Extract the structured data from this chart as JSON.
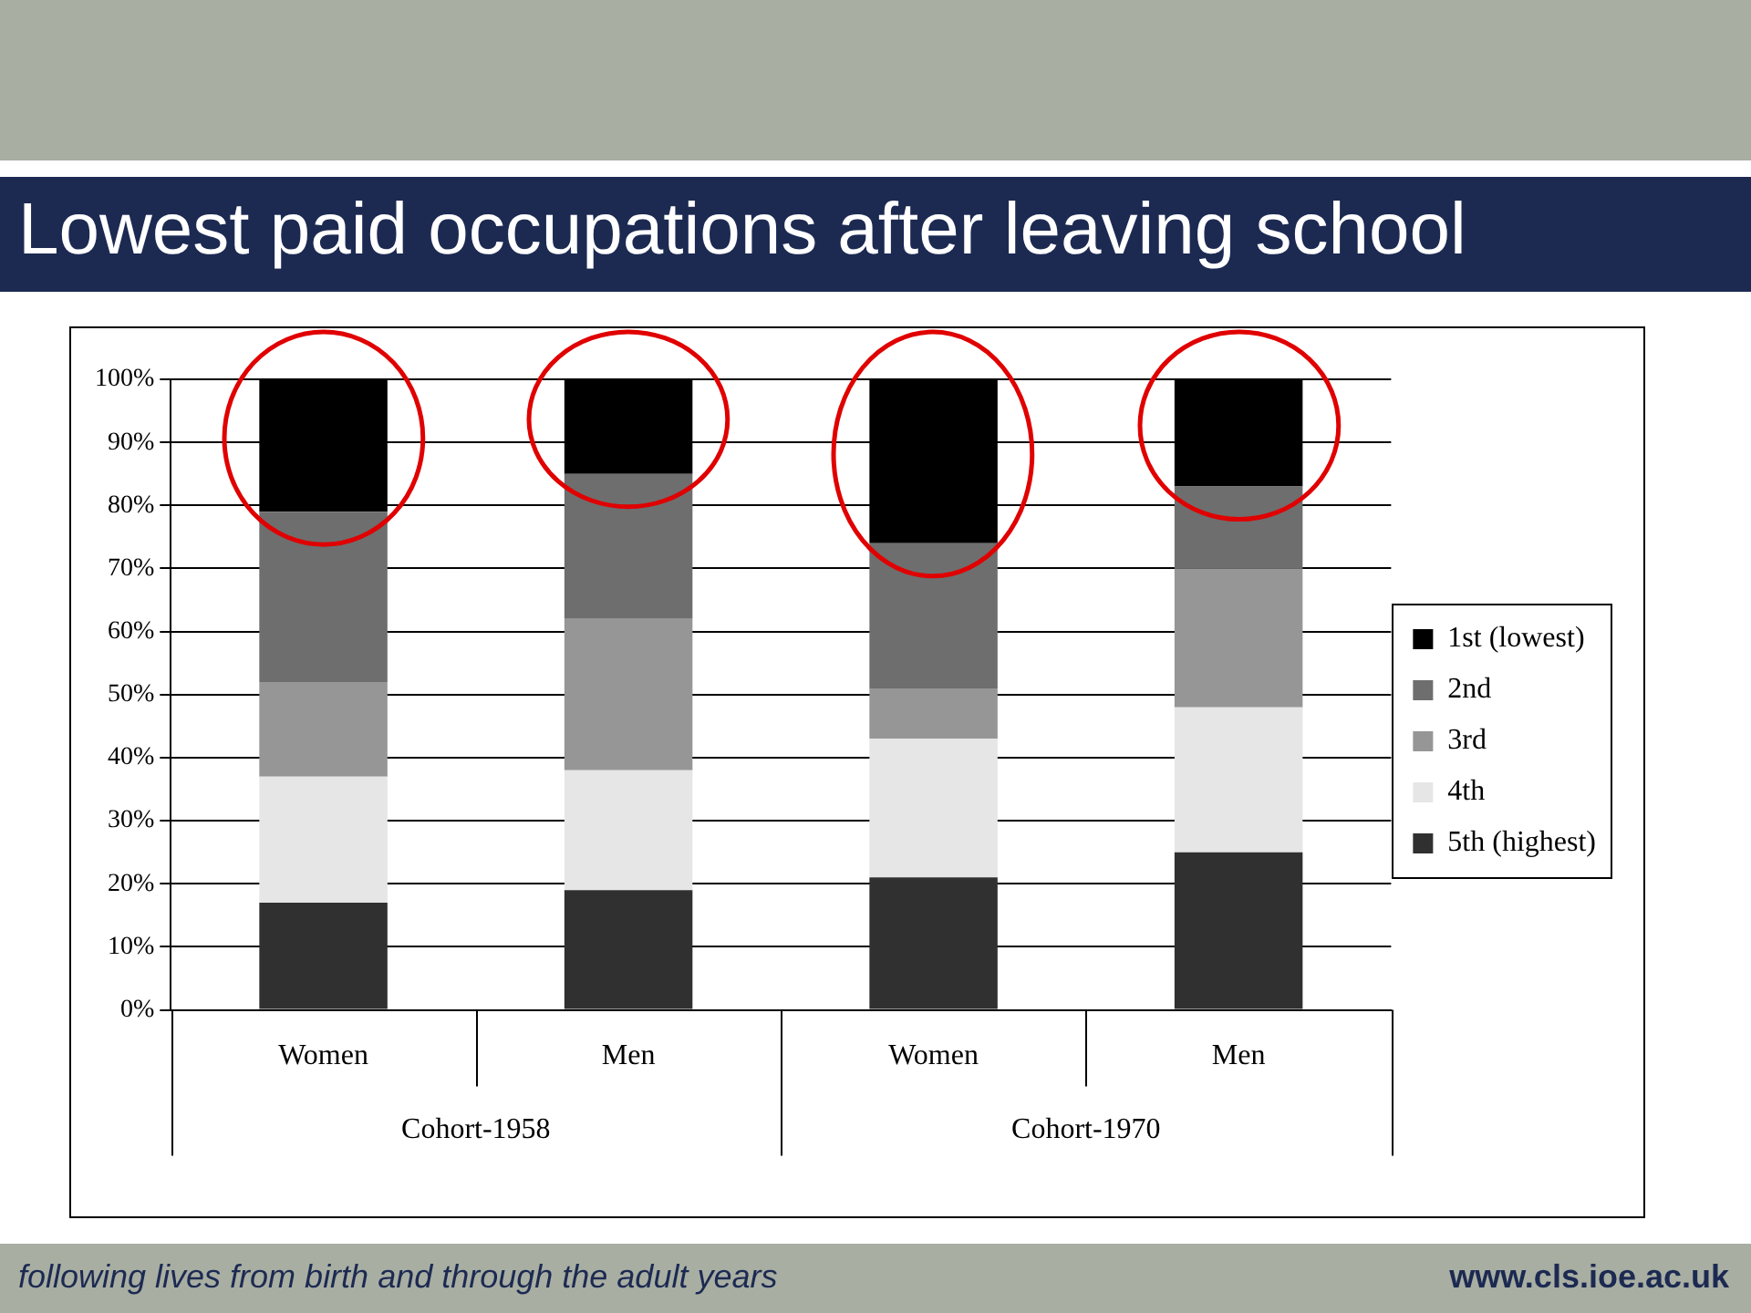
{
  "chart_data": {
    "type": "bar",
    "title": "Lowest paid occupations after leaving school",
    "categories": [
      "Women",
      "Men",
      "Women",
      "Men"
    ],
    "stacked": true,
    "legend": "right",
    "grid": "y",
    "ylim": [
      0,
      100
    ],
    "yticks": [
      {
        "value": 0,
        "label": "0%"
      },
      {
        "value": 10,
        "label": "10%"
      },
      {
        "value": 20,
        "label": "20%"
      },
      {
        "value": 30,
        "label": "30%"
      },
      {
        "value": 40,
        "label": "40%"
      },
      {
        "value": 50,
        "label": "50%"
      },
      {
        "value": 60,
        "label": "60%"
      },
      {
        "value": 70,
        "label": "70%"
      },
      {
        "value": 80,
        "label": "80%"
      },
      {
        "value": 90,
        "label": "90%"
      },
      {
        "value": 100,
        "label": "100%"
      }
    ],
    "series": [
      {
        "name": "5th (highest)",
        "color": "#303030",
        "values": [
          17,
          19,
          21,
          25
        ]
      },
      {
        "name": "4th",
        "color": "#e6e6e6",
        "values": [
          20,
          19,
          22,
          23
        ]
      },
      {
        "name": "3rd",
        "color": "#969696",
        "values": [
          15,
          24,
          8,
          22
        ]
      },
      {
        "name": "2nd",
        "color": "#6e6e6e",
        "values": [
          27,
          23,
          23,
          13
        ]
      },
      {
        "name": "1st (lowest)",
        "color": "#000000",
        "values": [
          21,
          15,
          26,
          17
        ]
      }
    ],
    "annotations": [
      "Cohort-1958",
      "Cohort-1970",
      "following lives from birth and through the adult years",
      "www.cls.ioe.ac.uk"
    ]
  }
}
